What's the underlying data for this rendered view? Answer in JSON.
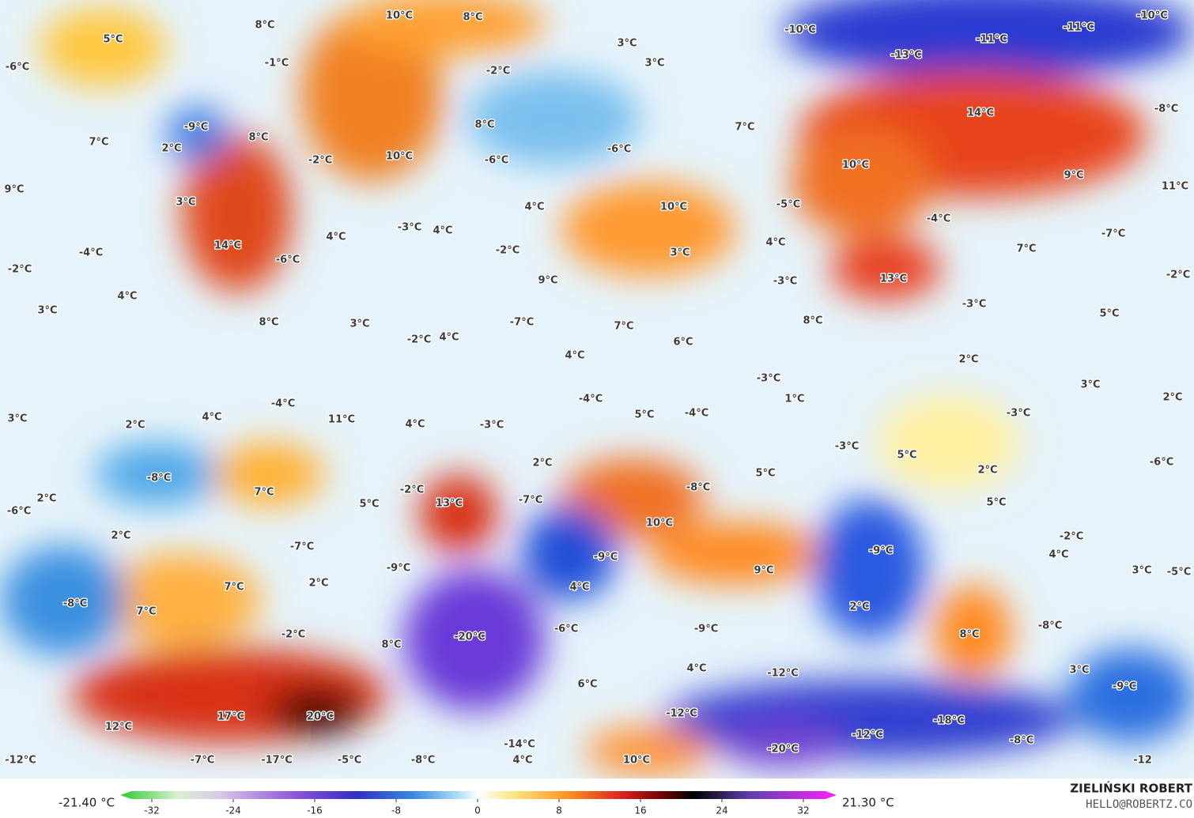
{
  "map": {
    "labels": [
      "10°C",
      "8°C",
      "5°C",
      "8°C",
      "3°C",
      "-10°C",
      "-11°C",
      "-11°C",
      "-10°C",
      "-13°C",
      "3°C",
      "-6°C",
      "-1°C",
      "-2°C",
      "-9°C",
      "7°C",
      "2°C",
      "8°C",
      "-2°C",
      "8°C",
      "10°C",
      "-6°C",
      "-6°C",
      "7°C",
      "14°C",
      "-8°C",
      "10°C",
      "9°C",
      "11°C",
      "9°C",
      "3°C",
      "4°C",
      "10°C",
      "-5°C",
      "-4°C",
      "-7°C",
      "14°C",
      "4°C",
      "-3°C",
      "4°C",
      "-2°C",
      "4°C",
      "3°C",
      "-4°C",
      "-6°C",
      "7°C",
      "-2°C",
      "-2°C",
      "9°C",
      "13°C",
      "-3°C",
      "4°C",
      "3°C",
      "-3°C",
      "5°C",
      "8°C",
      "3°C",
      "8°C",
      "-7°C",
      "7°C",
      "-2°C",
      "4°C",
      "6°C",
      "4°C",
      "2°C",
      "-3°C",
      "3°C",
      "1°C",
      "-4°C",
      "2°C",
      "-4°C",
      "4°C",
      "3°C",
      "11°C",
      "5°C",
      "-4°C",
      "-3°C",
      "2°C",
      "4°C",
      "-3°C",
      "-3°C",
      "5°C",
      "2°C",
      "-6°C",
      "5°C",
      "2°C",
      "-8°C",
      "7°C",
      "-2°C",
      "-8°C",
      "2°C",
      "5°C",
      "13°C",
      "-7°C",
      "5°C",
      "-6°C",
      "10°C",
      "2°C",
      "-2°C",
      "-7°C",
      "-9°C",
      "4°C",
      "-9°C",
      "-9°C",
      "9°C",
      "3°C",
      "-5°C",
      "2°C",
      "7°C",
      "4°C",
      "-8°C",
      "2°C",
      "7°C",
      "-6°C",
      "-9°C",
      "-8°C",
      "-2°C",
      "8°C",
      "-20°C",
      "8°C",
      "3°C",
      "4°C",
      "-12°C",
      "6°C",
      "-9°C",
      "17°C",
      "20°C",
      "-12°C",
      "-18°C",
      "12°C",
      "-12°C",
      "-8°C",
      "-14°C",
      "-20°C",
      "-12°C",
      "-7°C",
      "-17°C",
      "-5°C",
      "-8°C",
      "4°C",
      "10°C",
      "-12"
    ],
    "colorbar": {
      "min_label": "-21.40 °C",
      "max_label": "21.30 °C",
      "ticks": [
        -32,
        -24,
        -16,
        -8,
        0,
        8,
        16,
        24,
        32
      ]
    },
    "credit": {
      "name": "ZIELIŃSKI ROBERT",
      "email": "HELLO@ROBERTZ.CO"
    }
  }
}
